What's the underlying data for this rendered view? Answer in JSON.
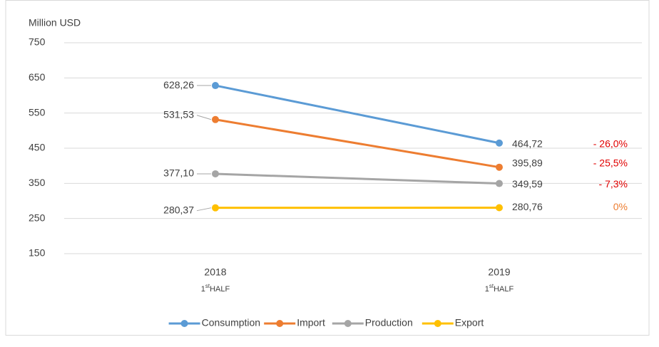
{
  "chart_data": {
    "type": "line",
    "y_axis_label": "Million USD",
    "categories": [
      "2018",
      "2019"
    ],
    "category_sublabels": [
      [
        "1",
        "st",
        "HALF"
      ],
      [
        "1",
        "st",
        "HALF"
      ]
    ],
    "ylim": [
      150,
      750
    ],
    "yticks": [
      150,
      250,
      350,
      450,
      550,
      650,
      750
    ],
    "grid": true,
    "legend": "bottom",
    "series": [
      {
        "name": "Consumption",
        "color": "#5b9bd5",
        "values": [
          628.26,
          464.72
        ],
        "value_labels": [
          "628,26",
          "464,72"
        ],
        "change_label": "- 26,0%",
        "change_color": "#e00000"
      },
      {
        "name": "Import",
        "color": "#ed7d31",
        "values": [
          531.53,
          395.89
        ],
        "value_labels": [
          "531,53",
          "395,89"
        ],
        "change_label": "- 25,5%",
        "change_color": "#e00000"
      },
      {
        "name": "Production",
        "color": "#a5a5a5",
        "values": [
          377.1,
          349.59
        ],
        "value_labels": [
          "377,10",
          "349,59"
        ],
        "change_label": "- 7,3%",
        "change_color": "#e00000"
      },
      {
        "name": "Export",
        "color": "#ffc000",
        "values": [
          280.37,
          280.76
        ],
        "value_labels": [
          "280,37",
          "280,76"
        ],
        "change_label": "0%",
        "change_color": "#ed7d31"
      }
    ]
  }
}
